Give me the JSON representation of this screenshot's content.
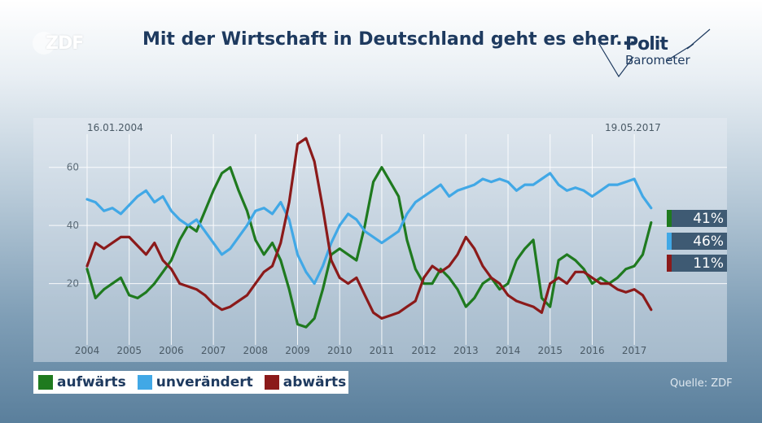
{
  "header": {
    "logo": "ZDF",
    "title": "Mit der Wirtschaft in Deutschland geht es eher...",
    "brand_line1": "Polit",
    "brand_line2": "Barometer"
  },
  "dates": {
    "start": "16.01.2004",
    "end": "19.05.2017"
  },
  "badges": [
    {
      "label": "41%",
      "color": "#1f7a1f"
    },
    {
      "label": "46%",
      "color": "#41a8e6"
    },
    {
      "label": "11%",
      "color": "#8b1a1a"
    }
  ],
  "legend": [
    {
      "label": "aufwärts",
      "color": "#1f7a1f"
    },
    {
      "label": "unverändert",
      "color": "#41a8e6"
    },
    {
      "label": "abwärts",
      "color": "#8b1a1a"
    }
  ],
  "source": "Quelle: ZDF",
  "chart_data": {
    "type": "line",
    "title": "Mit der Wirtschaft in Deutschland geht es eher...",
    "xlabel": "",
    "ylabel": "",
    "xlim": [
      2004.0,
      2017.5
    ],
    "ylim": [
      0,
      70
    ],
    "y_ticks": [
      20,
      40,
      60
    ],
    "x_ticks": [
      "2004",
      "2005",
      "2006",
      "2007",
      "2008",
      "2009",
      "2010",
      "2011",
      "2012",
      "2013",
      "2014",
      "2015",
      "2016",
      "2017"
    ],
    "grid": true,
    "series": [
      {
        "name": "aufwärts",
        "color": "#1f7a1f",
        "x": [
          2004.0,
          2004.2,
          2004.4,
          2004.6,
          2004.8,
          2005.0,
          2005.2,
          2005.4,
          2005.6,
          2005.8,
          2006.0,
          2006.2,
          2006.4,
          2006.6,
          2006.8,
          2007.0,
          2007.2,
          2007.4,
          2007.6,
          2007.8,
          2008.0,
          2008.2,
          2008.4,
          2008.6,
          2008.8,
          2009.0,
          2009.2,
          2009.4,
          2009.6,
          2009.8,
          2010.0,
          2010.2,
          2010.4,
          2010.6,
          2010.8,
          2011.0,
          2011.2,
          2011.4,
          2011.6,
          2011.8,
          2012.0,
          2012.2,
          2012.4,
          2012.6,
          2012.8,
          2013.0,
          2013.2,
          2013.4,
          2013.6,
          2013.8,
          2014.0,
          2014.2,
          2014.4,
          2014.6,
          2014.8,
          2015.0,
          2015.2,
          2015.4,
          2015.6,
          2015.8,
          2016.0,
          2016.2,
          2016.4,
          2016.6,
          2016.8,
          2017.0,
          2017.2,
          2017.4
        ],
        "values": [
          25,
          15,
          18,
          20,
          22,
          16,
          15,
          17,
          20,
          24,
          28,
          35,
          40,
          38,
          45,
          52,
          58,
          60,
          52,
          45,
          35,
          30,
          34,
          28,
          18,
          6,
          5,
          8,
          18,
          30,
          32,
          30,
          28,
          40,
          55,
          60,
          55,
          50,
          35,
          25,
          20,
          20,
          25,
          22,
          18,
          12,
          15,
          20,
          22,
          18,
          20,
          28,
          32,
          35,
          15,
          12,
          28,
          30,
          28,
          25,
          20,
          22,
          20,
          22,
          25,
          26,
          30,
          41
        ]
      },
      {
        "name": "unverändert",
        "color": "#41a8e6",
        "x": [
          2004.0,
          2004.2,
          2004.4,
          2004.6,
          2004.8,
          2005.0,
          2005.2,
          2005.4,
          2005.6,
          2005.8,
          2006.0,
          2006.2,
          2006.4,
          2006.6,
          2006.8,
          2007.0,
          2007.2,
          2007.4,
          2007.6,
          2007.8,
          2008.0,
          2008.2,
          2008.4,
          2008.6,
          2008.8,
          2009.0,
          2009.2,
          2009.4,
          2009.6,
          2009.8,
          2010.0,
          2010.2,
          2010.4,
          2010.6,
          2010.8,
          2011.0,
          2011.2,
          2011.4,
          2011.6,
          2011.8,
          2012.0,
          2012.2,
          2012.4,
          2012.6,
          2012.8,
          2013.0,
          2013.2,
          2013.4,
          2013.6,
          2013.8,
          2014.0,
          2014.2,
          2014.4,
          2014.6,
          2014.8,
          2015.0,
          2015.2,
          2015.4,
          2015.6,
          2015.8,
          2016.0,
          2016.2,
          2016.4,
          2016.6,
          2016.8,
          2017.0,
          2017.2,
          2017.4
        ],
        "values": [
          49,
          48,
          45,
          46,
          44,
          47,
          50,
          52,
          48,
          50,
          45,
          42,
          40,
          42,
          38,
          34,
          30,
          32,
          36,
          40,
          45,
          46,
          44,
          48,
          42,
          30,
          24,
          20,
          26,
          34,
          40,
          44,
          42,
          38,
          36,
          34,
          36,
          38,
          44,
          48,
          50,
          52,
          54,
          50,
          52,
          53,
          54,
          56,
          55,
          56,
          55,
          52,
          54,
          54,
          56,
          58,
          54,
          52,
          53,
          52,
          50,
          52,
          54,
          54,
          55,
          56,
          50,
          46
        ]
      },
      {
        "name": "abwärts",
        "color": "#8b1a1a",
        "x": [
          2004.0,
          2004.2,
          2004.4,
          2004.6,
          2004.8,
          2005.0,
          2005.2,
          2005.4,
          2005.6,
          2005.8,
          2006.0,
          2006.2,
          2006.4,
          2006.6,
          2006.8,
          2007.0,
          2007.2,
          2007.4,
          2007.6,
          2007.8,
          2008.0,
          2008.2,
          2008.4,
          2008.6,
          2008.8,
          2009.0,
          2009.2,
          2009.4,
          2009.6,
          2009.8,
          2010.0,
          2010.2,
          2010.4,
          2010.6,
          2010.8,
          2011.0,
          2011.2,
          2011.4,
          2011.6,
          2011.8,
          2012.0,
          2012.2,
          2012.4,
          2012.6,
          2012.8,
          2013.0,
          2013.2,
          2013.4,
          2013.6,
          2013.8,
          2014.0,
          2014.2,
          2014.4,
          2014.6,
          2014.8,
          2015.0,
          2015.2,
          2015.4,
          2015.6,
          2015.8,
          2016.0,
          2016.2,
          2016.4,
          2016.6,
          2016.8,
          2017.0,
          2017.2,
          2017.4
        ],
        "values": [
          26,
          34,
          32,
          34,
          36,
          36,
          33,
          30,
          34,
          28,
          25,
          20,
          19,
          18,
          16,
          13,
          11,
          12,
          14,
          16,
          20,
          24,
          26,
          34,
          48,
          68,
          70,
          62,
          46,
          28,
          22,
          20,
          22,
          16,
          10,
          8,
          9,
          10,
          12,
          14,
          22,
          26,
          24,
          26,
          30,
          36,
          32,
          26,
          22,
          20,
          16,
          14,
          13,
          12,
          10,
          20,
          22,
          20,
          24,
          24,
          22,
          20,
          20,
          18,
          17,
          18,
          16,
          11
        ]
      }
    ]
  }
}
